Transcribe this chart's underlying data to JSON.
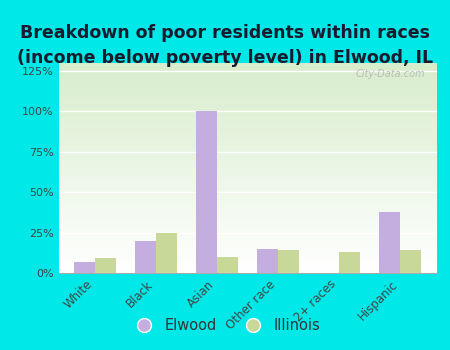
{
  "title_line1": "Breakdown of poor residents within races",
  "title_line2": "(income below poverty level) in Elwood, IL",
  "categories": [
    "White",
    "Black",
    "Asian",
    "Other race",
    "2+ races",
    "Hispanic"
  ],
  "elwood_values": [
    7,
    20,
    100,
    15,
    0,
    38
  ],
  "illinois_values": [
    9,
    25,
    10,
    14,
    13,
    14
  ],
  "elwood_color": "#c4aee0",
  "illinois_color": "#c8d898",
  "background_color": "#00e8e8",
  "plot_bg_color": "#eaf5e8",
  "ylim": [
    0,
    130
  ],
  "yticks": [
    0,
    25,
    50,
    75,
    100,
    125
  ],
  "ytick_labels": [
    "0%",
    "25%",
    "50%",
    "75%",
    "100%",
    "125%"
  ],
  "title_fontsize": 12.5,
  "bar_width": 0.35,
  "watermark": "City-Data.com"
}
